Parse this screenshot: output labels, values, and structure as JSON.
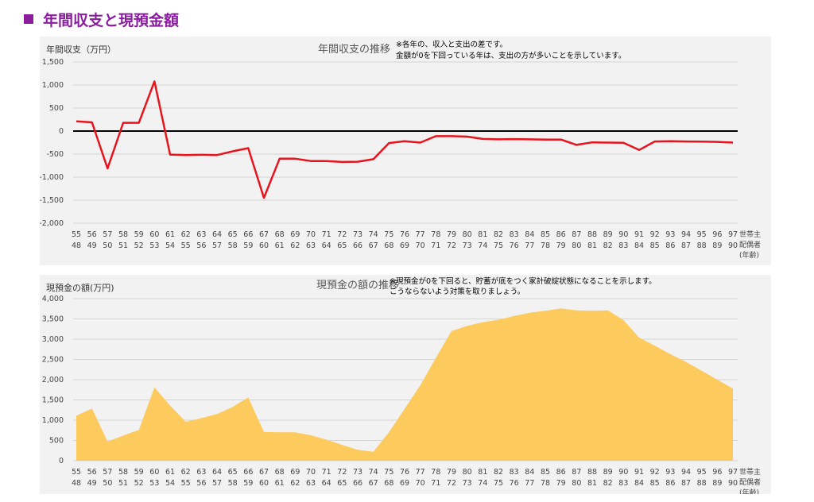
{
  "header": {
    "title": "年間収支と現預金額",
    "accent": "#8b1e9e"
  },
  "charts": [
    {
      "id": "balance",
      "type": "line",
      "title": "年間収支の推移",
      "ylabel": "年間収支（万円）",
      "note": [
        "※各年の、収入と支出の差です。",
        "金額が0を下回っている年は、支出の方が多いことを示しています。"
      ],
      "yticks": [
        "1,500",
        "1,000",
        "500",
        "0",
        "-500",
        "-1,000",
        "-1,500",
        "-2,000"
      ],
      "ytick_values": [
        1500,
        1000,
        500,
        0,
        -500,
        -1000,
        -1500,
        -2000
      ],
      "ylim": [
        -2000,
        1500
      ],
      "x_top": [
        "55",
        "56",
        "57",
        "58",
        "59",
        "60",
        "61",
        "62",
        "63",
        "64",
        "65",
        "66",
        "67",
        "68",
        "69",
        "70",
        "71",
        "72",
        "73",
        "74",
        "75",
        "76",
        "77",
        "78",
        "79",
        "80",
        "81",
        "82",
        "83",
        "84",
        "85",
        "86",
        "87",
        "88",
        "89",
        "90",
        "91",
        "92",
        "93",
        "94",
        "95",
        "96",
        "97"
      ],
      "x_bottom": [
        "48",
        "49",
        "50",
        "51",
        "52",
        "53",
        "54",
        "55",
        "56",
        "57",
        "58",
        "59",
        "60",
        "61",
        "62",
        "63",
        "64",
        "65",
        "66",
        "67",
        "68",
        "69",
        "70",
        "71",
        "72",
        "73",
        "74",
        "75",
        "76",
        "77",
        "78",
        "79",
        "80",
        "81",
        "82",
        "83",
        "84",
        "85",
        "86",
        "87",
        "88",
        "89",
        "90"
      ],
      "xlabel": [
        "世帯主",
        "配偶者",
        "(年齢)"
      ],
      "values": [
        210,
        190,
        -810,
        180,
        180,
        1080,
        -510,
        -520,
        -515,
        -520,
        -440,
        -370,
        -1450,
        -600,
        -600,
        -650,
        -650,
        -670,
        -665,
        -610,
        -260,
        -220,
        -250,
        -110,
        -110,
        -120,
        -170,
        -180,
        -175,
        -180,
        -185,
        -185,
        -300,
        -245,
        -250,
        -255,
        -410,
        -225,
        -220,
        -225,
        -230,
        -235,
        -250
      ],
      "color": "#e8141d",
      "zero_line_color": "#000000"
    },
    {
      "id": "cash",
      "type": "area",
      "title": "現預金の額の推移",
      "ylabel": "現預金の額(万円)",
      "note": [
        "※現預金が0を下回ると、貯蓄が底をつく家計破綻状態になることを示します。",
        "こうならないよう対策を取りましょう。"
      ],
      "yticks": [
        "4,000",
        "3,500",
        "3,000",
        "2,500",
        "2,000",
        "1,500",
        "1,000",
        "500",
        "0"
      ],
      "ytick_values": [
        4000,
        3500,
        3000,
        2500,
        2000,
        1500,
        1000,
        500,
        0
      ],
      "ylim": [
        0,
        4000
      ],
      "x_top": [
        "55",
        "56",
        "57",
        "58",
        "59",
        "60",
        "61",
        "62",
        "63",
        "64",
        "65",
        "66",
        "67",
        "68",
        "69",
        "70",
        "71",
        "72",
        "73",
        "74",
        "75",
        "76",
        "77",
        "78",
        "79",
        "80",
        "81",
        "82",
        "83",
        "84",
        "85",
        "86",
        "87",
        "88",
        "89",
        "90",
        "91",
        "92",
        "93",
        "94",
        "95",
        "96",
        "97"
      ],
      "x_bottom": [
        "48",
        "49",
        "50",
        "51",
        "52",
        "53",
        "54",
        "55",
        "56",
        "57",
        "58",
        "59",
        "60",
        "61",
        "62",
        "63",
        "64",
        "65",
        "66",
        "67",
        "68",
        "69",
        "70",
        "71",
        "72",
        "73",
        "74",
        "75",
        "76",
        "77",
        "78",
        "79",
        "80",
        "81",
        "82",
        "83",
        "84",
        "85",
        "86",
        "87",
        "88",
        "89",
        "90"
      ],
      "xlabel": [
        "世帯主",
        "配偶者",
        "(年齢)"
      ],
      "values": [
        1110,
        1290,
        470,
        620,
        760,
        1810,
        1360,
        960,
        1050,
        1150,
        1330,
        1560,
        710,
        700,
        700,
        630,
        520,
        390,
        270,
        220,
        700,
        1280,
        1860,
        2540,
        3200,
        3330,
        3420,
        3480,
        3570,
        3650,
        3700,
        3760,
        3710,
        3700,
        3710,
        3470,
        3040,
        2840,
        2630,
        2440,
        2220,
        2000,
        1780
      ],
      "color": "#fdca5e"
    }
  ]
}
